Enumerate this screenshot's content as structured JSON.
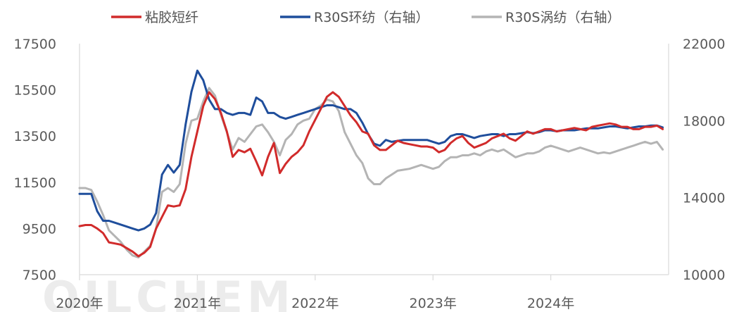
{
  "watermark": "OILCHEM",
  "chart_data": {
    "type": "line",
    "title": "",
    "xlabel": "",
    "ylabel": "",
    "x_categories": [
      "2020年",
      "2021年",
      "2022年",
      "2023年",
      "2024年"
    ],
    "x_range": [
      0,
      5
    ],
    "ylim_left": [
      7500,
      17500
    ],
    "yticks_left": [
      "17500",
      "15500",
      "13500",
      "11500",
      "9500",
      "7500"
    ],
    "ylim_right": [
      10000,
      22000
    ],
    "yticks_right": [
      "22000",
      "18000",
      "14000",
      "10000"
    ],
    "legend_position": "top",
    "grid": false,
    "series": [
      {
        "name": "粘胶短纤",
        "axis": "left",
        "color": "#d12b2b",
        "x": [
          0.0,
          0.05,
          0.1,
          0.15,
          0.2,
          0.25,
          0.3,
          0.35,
          0.4,
          0.45,
          0.5,
          0.55,
          0.6,
          0.65,
          0.7,
          0.75,
          0.8,
          0.85,
          0.9,
          0.95,
          1.0,
          1.05,
          1.1,
          1.15,
          1.2,
          1.25,
          1.3,
          1.35,
          1.4,
          1.45,
          1.5,
          1.55,
          1.6,
          1.65,
          1.7,
          1.75,
          1.8,
          1.85,
          1.9,
          1.95,
          2.0,
          2.05,
          2.1,
          2.15,
          2.2,
          2.25,
          2.3,
          2.35,
          2.4,
          2.45,
          2.5,
          2.55,
          2.6,
          2.65,
          2.7,
          2.75,
          2.8,
          2.85,
          2.9,
          2.95,
          3.0,
          3.05,
          3.1,
          3.15,
          3.2,
          3.25,
          3.3,
          3.35,
          3.4,
          3.45,
          3.5,
          3.55,
          3.6,
          3.65,
          3.7,
          3.75,
          3.8,
          3.85,
          3.9,
          3.95,
          4.0,
          4.05,
          4.1,
          4.15,
          4.2,
          4.25,
          4.3,
          4.35,
          4.4,
          4.45,
          4.5,
          4.55,
          4.6,
          4.65,
          4.7,
          4.75,
          4.8,
          4.85,
          4.9,
          4.95
        ],
        "values": [
          9600,
          9650,
          9650,
          9500,
          9300,
          8900,
          8850,
          8800,
          8650,
          8500,
          8300,
          8450,
          8700,
          9500,
          10000,
          10500,
          10450,
          10500,
          11200,
          12600,
          13700,
          14800,
          15400,
          15100,
          14500,
          13700,
          12600,
          12900,
          12800,
          12950,
          12400,
          11800,
          12600,
          13200,
          11900,
          12300,
          12600,
          12800,
          13100,
          13700,
          14200,
          14700,
          15200,
          15400,
          15200,
          14800,
          14400,
          14100,
          13700,
          13600,
          13100,
          12900,
          12900,
          13100,
          13300,
          13200,
          13150,
          13100,
          13050,
          13050,
          13000,
          12800,
          12900,
          13200,
          13400,
          13500,
          13200,
          13000,
          13100,
          13200,
          13400,
          13500,
          13600,
          13400,
          13300,
          13500,
          13700,
          13600,
          13700,
          13800,
          13800,
          13700,
          13750,
          13800,
          13850,
          13800,
          13750,
          13900,
          13950,
          14000,
          14050,
          14000,
          13900,
          13900,
          13800,
          13800,
          13900,
          13900,
          13950,
          13800
        ]
      },
      {
        "name": "R30S环纺（右轴）",
        "axis": "right",
        "color": "#1f4e9c",
        "x": [
          0.0,
          0.05,
          0.1,
          0.15,
          0.2,
          0.25,
          0.3,
          0.35,
          0.4,
          0.45,
          0.5,
          0.55,
          0.6,
          0.65,
          0.7,
          0.75,
          0.8,
          0.85,
          0.9,
          0.95,
          1.0,
          1.05,
          1.1,
          1.15,
          1.2,
          1.25,
          1.3,
          1.35,
          1.4,
          1.45,
          1.5,
          1.55,
          1.6,
          1.65,
          1.7,
          1.75,
          1.8,
          1.85,
          1.9,
          1.95,
          2.0,
          2.05,
          2.1,
          2.15,
          2.2,
          2.25,
          2.3,
          2.35,
          2.4,
          2.45,
          2.5,
          2.55,
          2.6,
          2.65,
          2.7,
          2.75,
          2.8,
          2.85,
          2.9,
          2.95,
          3.0,
          3.05,
          3.1,
          3.15,
          3.2,
          3.25,
          3.3,
          3.35,
          3.4,
          3.45,
          3.5,
          3.55,
          3.6,
          3.65,
          3.7,
          3.75,
          3.8,
          3.85,
          3.9,
          3.95,
          4.0,
          4.05,
          4.1,
          4.15,
          4.2,
          4.25,
          4.3,
          4.35,
          4.4,
          4.45,
          4.5,
          4.55,
          4.6,
          4.65,
          4.7,
          4.75,
          4.8,
          4.85,
          4.9,
          4.95
        ],
        "values": [
          14200,
          14200,
          14200,
          13300,
          12800,
          12800,
          12700,
          12600,
          12500,
          12400,
          12300,
          12400,
          12600,
          13200,
          15200,
          15700,
          15300,
          15700,
          17800,
          19500,
          20600,
          20100,
          19100,
          18600,
          18600,
          18400,
          18300,
          18400,
          18400,
          18300,
          19200,
          19000,
          18400,
          18400,
          18200,
          18100,
          18200,
          18300,
          18400,
          18500,
          18600,
          18700,
          18800,
          18800,
          18700,
          18600,
          18600,
          18400,
          17900,
          17300,
          16800,
          16700,
          17000,
          16900,
          16950,
          17000,
          17000,
          17000,
          17000,
          17000,
          16900,
          16800,
          16900,
          17200,
          17300,
          17300,
          17200,
          17100,
          17200,
          17250,
          17300,
          17300,
          17200,
          17300,
          17300,
          17350,
          17400,
          17350,
          17400,
          17500,
          17500,
          17450,
          17500,
          17500,
          17500,
          17550,
          17600,
          17600,
          17600,
          17650,
          17700,
          17700,
          17650,
          17600,
          17650,
          17700,
          17700,
          17750,
          17750,
          17650
        ]
      },
      {
        "name": "R30S涡纺（右轴）",
        "axis": "right",
        "color": "#b4b4b4",
        "x": [
          0.0,
          0.05,
          0.1,
          0.15,
          0.2,
          0.25,
          0.3,
          0.35,
          0.4,
          0.45,
          0.5,
          0.55,
          0.6,
          0.65,
          0.7,
          0.75,
          0.8,
          0.85,
          0.9,
          0.95,
          1.0,
          1.05,
          1.1,
          1.15,
          1.2,
          1.25,
          1.3,
          1.35,
          1.4,
          1.45,
          1.5,
          1.55,
          1.6,
          1.65,
          1.7,
          1.75,
          1.8,
          1.85,
          1.9,
          1.95,
          2.0,
          2.05,
          2.1,
          2.15,
          2.2,
          2.25,
          2.3,
          2.35,
          2.4,
          2.45,
          2.5,
          2.55,
          2.6,
          2.65,
          2.7,
          2.75,
          2.8,
          2.85,
          2.9,
          2.95,
          3.0,
          3.05,
          3.1,
          3.15,
          3.2,
          3.25,
          3.3,
          3.35,
          3.4,
          3.45,
          3.5,
          3.55,
          3.6,
          3.65,
          3.7,
          3.75,
          3.8,
          3.85,
          3.9,
          3.95,
          4.0,
          4.05,
          4.1,
          4.15,
          4.2,
          4.25,
          4.3,
          4.35,
          4.4,
          4.45,
          4.5,
          4.55,
          4.6,
          4.65,
          4.7,
          4.75,
          4.8,
          4.85,
          4.9,
          4.95
        ],
        "values": [
          14500,
          14500,
          14400,
          13800,
          13100,
          12300,
          12000,
          11700,
          11300,
          11000,
          10900,
          11200,
          11500,
          12400,
          14300,
          14500,
          14300,
          14700,
          16800,
          18000,
          18100,
          19000,
          19700,
          19300,
          18300,
          17400,
          16500,
          17100,
          16900,
          17300,
          17700,
          17800,
          17400,
          16900,
          16200,
          17000,
          17300,
          17800,
          18000,
          18100,
          18600,
          18800,
          19100,
          19000,
          18500,
          17400,
          16800,
          16200,
          15800,
          15000,
          14700,
          14700,
          15000,
          15200,
          15400,
          15450,
          15500,
          15600,
          15700,
          15600,
          15500,
          15600,
          15900,
          16100,
          16100,
          16200,
          16200,
          16300,
          16200,
          16400,
          16500,
          16400,
          16500,
          16300,
          16100,
          16200,
          16300,
          16300,
          16400,
          16600,
          16700,
          16600,
          16500,
          16400,
          16500,
          16600,
          16500,
          16400,
          16300,
          16350,
          16300,
          16400,
          16500,
          16600,
          16700,
          16800,
          16900,
          16800,
          16900,
          16500
        ]
      }
    ]
  }
}
